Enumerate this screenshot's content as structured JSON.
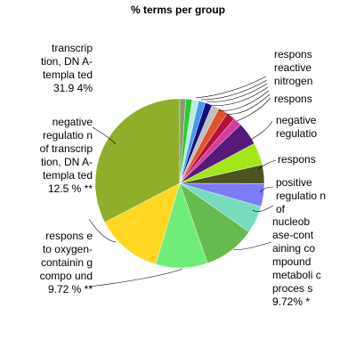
{
  "chart_data": {
    "type": "pie",
    "title": "% terms per group",
    "slices": [
      {
        "label": "transcription, DNA-templated 31.94%",
        "value": 31.94,
        "color": "#8FAE2A"
      },
      {
        "label": "negative regulation of transcription, DNA-templated 12.5% **",
        "value": 12.5,
        "color": "#FFD621"
      },
      {
        "label": "response to oxygen-containing compound 9.72% **",
        "value": 9.72,
        "color": "#6FED78"
      },
      {
        "label": "nucleobase-containing compound metabolic process 9.72% *",
        "value": 9.72,
        "color": "#66BB4E"
      },
      {
        "label": "",
        "value": 5.2,
        "color": "#79DBBE"
      },
      {
        "label": "positive regulation of",
        "value": 4.3,
        "color": "#7C7CF4"
      },
      {
        "label": "",
        "value": 3.5,
        "color": "#4B5320"
      },
      {
        "label": "respons",
        "value": 4.2,
        "color": "#A3E61A"
      },
      {
        "label": "negative regulatio",
        "value": 4.3,
        "color": "#551A7A"
      },
      {
        "label": "",
        "value": 1.6,
        "color": "#D73B9F"
      },
      {
        "label": "",
        "value": 1.6,
        "color": "#B3123A"
      },
      {
        "label": "respons",
        "value": 1.8,
        "color": "#E0512D"
      },
      {
        "label": "",
        "value": 1.4,
        "color": "#C0C0C0"
      },
      {
        "label": "",
        "value": 1.3,
        "color": "#10107A"
      },
      {
        "label": "reactive nitrogen",
        "value": 1.3,
        "color": "#4B96F0"
      },
      {
        "label": "",
        "value": 1.2,
        "color": "#B7EEDC"
      },
      {
        "label": "respons",
        "value": 1.2,
        "color": "#30C832"
      },
      {
        "label": "",
        "value": 1.1,
        "color": "#8A9A6A"
      }
    ]
  },
  "labels": {
    "left1": "transcrip tion, DN A-templa ted 31.9 4%",
    "left2": "negative regulatio n of transcrip tion, DN A-templa ted 12.5 % **",
    "left3": "respons e to oxygen- containin g compo und 9.72 % **",
    "right_top": "respons reactive nitrogen",
    "right_resp2": "respons",
    "right_neg": "negative regulatio",
    "right_resp3": "respons",
    "right_pos": "positive regulatio n of",
    "right_nuc": "nucleob ase-cont aining co mpound metaboli c proces s 9.72% *"
  }
}
